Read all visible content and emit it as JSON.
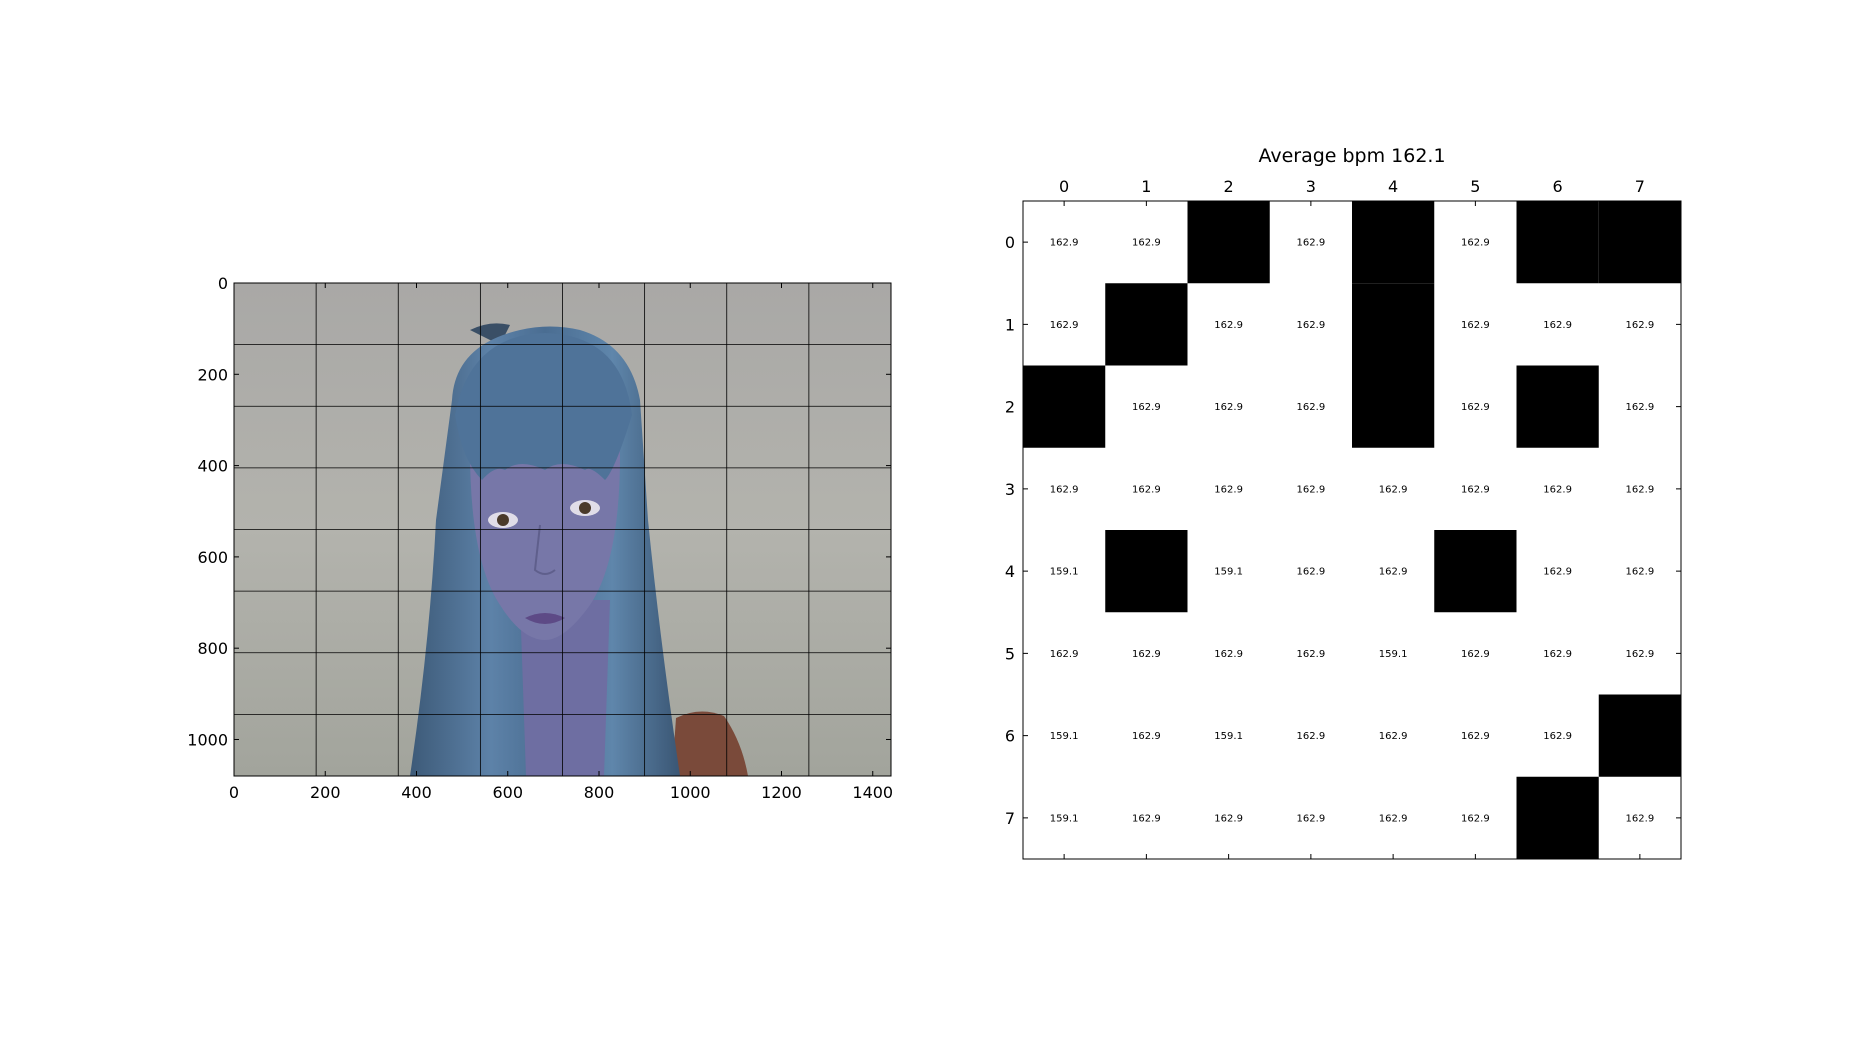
{
  "chart_data": [
    {
      "type": "image",
      "description_free": true,
      "xlim": [
        0,
        1440
      ],
      "ylim": [
        1080,
        0
      ],
      "x_ticks": [
        "0",
        "200",
        "400",
        "600",
        "800",
        "1000",
        "1200",
        "1400"
      ],
      "y_ticks": [
        "0",
        "200",
        "400",
        "600",
        "800",
        "1000"
      ],
      "x_tick_values": [
        0,
        200,
        400,
        600,
        800,
        1000,
        1200,
        1400
      ],
      "y_tick_values": [
        0,
        200,
        400,
        600,
        800,
        1000
      ],
      "grid": {
        "vertical_x": [
          180,
          360,
          540,
          720,
          900,
          1080,
          1260
        ],
        "horizontal_y": [
          135,
          270,
          405,
          540,
          675,
          810,
          945
        ]
      },
      "colors": {
        "background": "#adacab",
        "hair": "#4f6f8f",
        "skin": "#7777a8",
        "shirt": "#7a4a3a"
      }
    },
    {
      "type": "heatmap",
      "title": "Average bpm 162.1",
      "x_ticks": [
        "0",
        "1",
        "2",
        "3",
        "4",
        "5",
        "6",
        "7"
      ],
      "y_ticks": [
        "0",
        "1",
        "2",
        "3",
        "4",
        "5",
        "6",
        "7"
      ],
      "masked_color": "#000000",
      "cells": [
        [
          "162.9",
          "162.9",
          null,
          "162.9",
          null,
          "162.9",
          null,
          null
        ],
        [
          "162.9",
          null,
          "162.9",
          "162.9",
          null,
          "162.9",
          "162.9",
          "162.9"
        ],
        [
          null,
          "162.9",
          "162.9",
          "162.9",
          null,
          "162.9",
          null,
          "162.9"
        ],
        [
          "162.9",
          "162.9",
          "162.9",
          "162.9",
          "162.9",
          "162.9",
          "162.9",
          "162.9"
        ],
        [
          "159.1",
          null,
          "159.1",
          "162.9",
          "162.9",
          null,
          "162.9",
          "162.9"
        ],
        [
          "162.9",
          "162.9",
          "162.9",
          "162.9",
          "159.1",
          "162.9",
          "162.9",
          "162.9"
        ],
        [
          "159.1",
          "162.9",
          "159.1",
          "162.9",
          "162.9",
          "162.9",
          "162.9",
          null
        ],
        [
          "159.1",
          "162.9",
          "162.9",
          "162.9",
          "162.9",
          "162.9",
          null,
          "162.9"
        ]
      ]
    }
  ]
}
